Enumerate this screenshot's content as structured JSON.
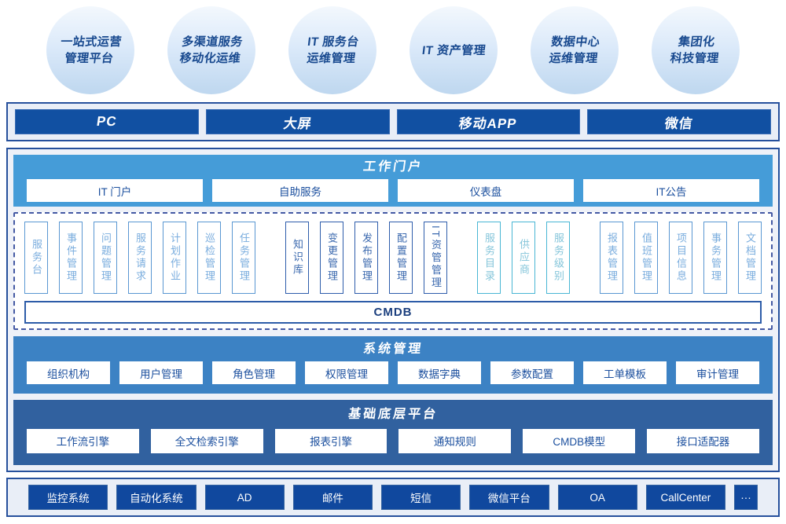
{
  "bubbles": [
    "一站式运营\n管理平台",
    "多渠道服务\n移动化运维",
    "IT 服务台\n运维管理",
    "IT 资产管理",
    "数据中心\n运维管理",
    "集团化\n科技管理"
  ],
  "channels": [
    "PC",
    "大屏",
    "移动APP",
    "微信"
  ],
  "portal": {
    "title": "工作门户",
    "items": [
      "IT 门户",
      "自助服务",
      "仪表盘",
      "IT公告"
    ]
  },
  "modules": {
    "g1": [
      "服务台",
      "事件管理",
      "问题管理",
      "服务请求",
      "计划作业",
      "巡检管理",
      "任务管理"
    ],
    "g2": [
      "知识库",
      "变更管理",
      "发布管理",
      "配置管理",
      "IT资管管理"
    ],
    "g3": [
      "服务目录",
      "供应商",
      "服务级别"
    ],
    "g4": [
      "报表管理",
      "值班管理",
      "项目信息",
      "事务管理",
      "文档管理"
    ],
    "cmdb": "CMDB"
  },
  "system": {
    "title": "系统管理",
    "items": [
      "组织机构",
      "用户管理",
      "角色管理",
      "权限管理",
      "数据字典",
      "参数配置",
      "工单模板",
      "审计管理"
    ]
  },
  "foundation": {
    "title": "基础底层平台",
    "items": [
      "工作流引擎",
      "全文检索引擎",
      "报表引擎",
      "通知规则",
      "CMDB模型",
      "接口适配器"
    ]
  },
  "integrations": [
    "监控系统",
    "自动化系统",
    "AD",
    "邮件",
    "短信",
    "微信平台",
    "OA",
    "CallCenter",
    "···"
  ],
  "colors": {
    "navy_border": "#26509c",
    "portal_bg": "#459cd8",
    "system_bg": "#3c82c4",
    "foundation_bg": "#31619f",
    "dark_button": "#1150a2",
    "blue_item": "#5a97d2",
    "navy_item": "#2e5dab",
    "teal_item": "#49b6d4"
  }
}
